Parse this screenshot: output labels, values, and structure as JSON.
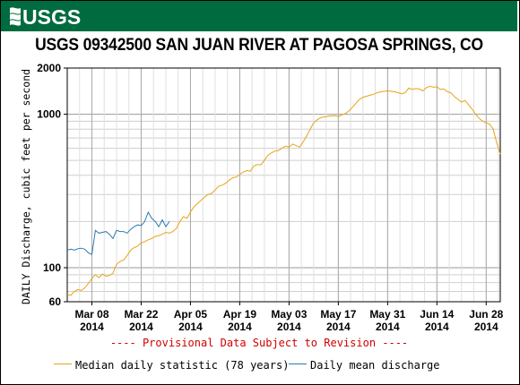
{
  "logo": {
    "text": "USGS",
    "color": "#006b3f"
  },
  "chart_data": {
    "type": "line",
    "title": "USGS 09342500 SAN JUAN RIVER AT PAGOSA SPRINGS, CO",
    "ylabel": "DAILY Discharge, cubic feet per second",
    "xlabel": "",
    "yscale": "log",
    "ylim": [
      60,
      2000
    ],
    "y_ticks": [
      {
        "value": 60,
        "label": "60"
      },
      {
        "value": 100,
        "label": "100"
      },
      {
        "value": 1000,
        "label": "1000"
      },
      {
        "value": 2000,
        "label": "2000"
      }
    ],
    "x_range": [
      "2014-03-01",
      "2014-07-02"
    ],
    "x_ticks": [
      {
        "date": "2014-03-08",
        "label": [
          "Mar 08",
          "2014"
        ]
      },
      {
        "date": "2014-03-22",
        "label": [
          "Mar 22",
          "2014"
        ]
      },
      {
        "date": "2014-04-05",
        "label": [
          "Apr 05",
          "2014"
        ]
      },
      {
        "date": "2014-04-19",
        "label": [
          "Apr 19",
          "2014"
        ]
      },
      {
        "date": "2014-05-03",
        "label": [
          "May 03",
          "2014"
        ]
      },
      {
        "date": "2014-05-17",
        "label": [
          "May 17",
          "2014"
        ]
      },
      {
        "date": "2014-05-31",
        "label": [
          "May 31",
          "2014"
        ]
      },
      {
        "date": "2014-06-14",
        "label": [
          "Jun 14",
          "2014"
        ]
      },
      {
        "date": "2014-06-28",
        "label": [
          "Jun 28",
          "2014"
        ]
      }
    ],
    "grid": true,
    "legend_position": "bottom",
    "annotation": "---- Provisional Data Subject to Revision ----",
    "series": [
      {
        "name": "Median daily statistic (78 years)",
        "color": "#e8a317",
        "points": [
          [
            "2014-03-01",
            67
          ],
          [
            "2014-03-02",
            66
          ],
          [
            "2014-03-03",
            70
          ],
          [
            "2014-03-04",
            72
          ],
          [
            "2014-03-05",
            71
          ],
          [
            "2014-03-06",
            74
          ],
          [
            "2014-03-07",
            79
          ],
          [
            "2014-03-08",
            85
          ],
          [
            "2014-03-09",
            90
          ],
          [
            "2014-03-10",
            86
          ],
          [
            "2014-03-11",
            91
          ],
          [
            "2014-03-12",
            88
          ],
          [
            "2014-03-13",
            89
          ],
          [
            "2014-03-14",
            92
          ],
          [
            "2014-03-15",
            105
          ],
          [
            "2014-03-16",
            110
          ],
          [
            "2014-03-17",
            112
          ],
          [
            "2014-03-18",
            120
          ],
          [
            "2014-03-19",
            130
          ],
          [
            "2014-03-20",
            135
          ],
          [
            "2014-03-21",
            138
          ],
          [
            "2014-03-22",
            145
          ],
          [
            "2014-03-23",
            148
          ],
          [
            "2014-03-24",
            152
          ],
          [
            "2014-03-25",
            155
          ],
          [
            "2014-03-26",
            160
          ],
          [
            "2014-03-27",
            162
          ],
          [
            "2014-03-28",
            165
          ],
          [
            "2014-03-29",
            170
          ],
          [
            "2014-03-30",
            168
          ],
          [
            "2014-03-31",
            172
          ],
          [
            "2014-04-01",
            180
          ],
          [
            "2014-04-02",
            200
          ],
          [
            "2014-04-03",
            215
          ],
          [
            "2014-04-04",
            210
          ],
          [
            "2014-04-05",
            230
          ],
          [
            "2014-04-06",
            250
          ],
          [
            "2014-04-07",
            262
          ],
          [
            "2014-04-08",
            275
          ],
          [
            "2014-04-09",
            288
          ],
          [
            "2014-04-10",
            300
          ],
          [
            "2014-04-11",
            305
          ],
          [
            "2014-04-12",
            320
          ],
          [
            "2014-04-13",
            340
          ],
          [
            "2014-04-14",
            345
          ],
          [
            "2014-04-15",
            355
          ],
          [
            "2014-04-16",
            372
          ],
          [
            "2014-04-17",
            385
          ],
          [
            "2014-04-18",
            390
          ],
          [
            "2014-04-19",
            405
          ],
          [
            "2014-04-20",
            420
          ],
          [
            "2014-04-21",
            430
          ],
          [
            "2014-04-22",
            425
          ],
          [
            "2014-04-23",
            460
          ],
          [
            "2014-04-24",
            470
          ],
          [
            "2014-04-25",
            468
          ],
          [
            "2014-04-26",
            500
          ],
          [
            "2014-04-27",
            540
          ],
          [
            "2014-04-28",
            560
          ],
          [
            "2014-04-29",
            575
          ],
          [
            "2014-04-30",
            580
          ],
          [
            "2014-05-01",
            600
          ],
          [
            "2014-05-02",
            620
          ],
          [
            "2014-05-03",
            610
          ],
          [
            "2014-05-04",
            640
          ],
          [
            "2014-05-05",
            625
          ],
          [
            "2014-05-06",
            610
          ],
          [
            "2014-05-07",
            660
          ],
          [
            "2014-05-08",
            720
          ],
          [
            "2014-05-09",
            800
          ],
          [
            "2014-05-10",
            880
          ],
          [
            "2014-05-11",
            920
          ],
          [
            "2014-05-12",
            950
          ],
          [
            "2014-05-13",
            960
          ],
          [
            "2014-05-14",
            970
          ],
          [
            "2014-05-15",
            975
          ],
          [
            "2014-05-16",
            980
          ],
          [
            "2014-05-17",
            965
          ],
          [
            "2014-05-18",
            990
          ],
          [
            "2014-05-19",
            1010
          ],
          [
            "2014-05-20",
            1050
          ],
          [
            "2014-05-21",
            1110
          ],
          [
            "2014-05-22",
            1180
          ],
          [
            "2014-05-23",
            1250
          ],
          [
            "2014-05-24",
            1290
          ],
          [
            "2014-05-25",
            1310
          ],
          [
            "2014-05-26",
            1330
          ],
          [
            "2014-05-27",
            1350
          ],
          [
            "2014-05-28",
            1380
          ],
          [
            "2014-05-29",
            1400
          ],
          [
            "2014-05-30",
            1410
          ],
          [
            "2014-05-31",
            1420
          ],
          [
            "2014-06-01",
            1410
          ],
          [
            "2014-06-02",
            1400
          ],
          [
            "2014-06-03",
            1380
          ],
          [
            "2014-06-04",
            1360
          ],
          [
            "2014-06-05",
            1380
          ],
          [
            "2014-06-06",
            1480
          ],
          [
            "2014-06-07",
            1450
          ],
          [
            "2014-06-08",
            1470
          ],
          [
            "2014-06-09",
            1460
          ],
          [
            "2014-06-10",
            1420
          ],
          [
            "2014-06-11",
            1490
          ],
          [
            "2014-06-12",
            1520
          ],
          [
            "2014-06-13",
            1500
          ],
          [
            "2014-06-14",
            1510
          ],
          [
            "2014-06-15",
            1450
          ],
          [
            "2014-06-16",
            1460
          ],
          [
            "2014-06-17",
            1400
          ],
          [
            "2014-06-18",
            1380
          ],
          [
            "2014-06-19",
            1300
          ],
          [
            "2014-06-20",
            1250
          ],
          [
            "2014-06-21",
            1200
          ],
          [
            "2014-06-22",
            1230
          ],
          [
            "2014-06-23",
            1150
          ],
          [
            "2014-06-24",
            1080
          ],
          [
            "2014-06-25",
            1000
          ],
          [
            "2014-06-26",
            940
          ],
          [
            "2014-06-27",
            900
          ],
          [
            "2014-06-28",
            880
          ],
          [
            "2014-06-29",
            860
          ],
          [
            "2014-06-30",
            800
          ],
          [
            "2014-07-01",
            650
          ],
          [
            "2014-07-02",
            550
          ]
        ]
      },
      {
        "name": "Daily mean discharge",
        "color": "#2a7ab0",
        "points": [
          [
            "2014-03-01",
            130
          ],
          [
            "2014-03-02",
            132
          ],
          [
            "2014-03-03",
            130
          ],
          [
            "2014-03-04",
            133
          ],
          [
            "2014-03-05",
            134
          ],
          [
            "2014-03-06",
            132
          ],
          [
            "2014-03-07",
            125
          ],
          [
            "2014-03-08",
            122
          ],
          [
            "2014-03-09",
            175
          ],
          [
            "2014-03-10",
            168
          ],
          [
            "2014-03-11",
            170
          ],
          [
            "2014-03-12",
            172
          ],
          [
            "2014-03-13",
            165
          ],
          [
            "2014-03-14",
            155
          ],
          [
            "2014-03-15",
            175
          ],
          [
            "2014-03-16",
            172
          ],
          [
            "2014-03-17",
            172
          ],
          [
            "2014-03-18",
            168
          ],
          [
            "2014-03-19",
            178
          ],
          [
            "2014-03-20",
            185
          ],
          [
            "2014-03-21",
            190
          ],
          [
            "2014-03-22",
            188
          ],
          [
            "2014-03-23",
            200
          ],
          [
            "2014-03-24",
            230
          ],
          [
            "2014-03-25",
            210
          ],
          [
            "2014-03-26",
            200
          ],
          [
            "2014-03-27",
            185
          ],
          [
            "2014-03-28",
            205
          ],
          [
            "2014-03-29",
            185
          ],
          [
            "2014-03-30",
            200
          ]
        ]
      }
    ]
  }
}
